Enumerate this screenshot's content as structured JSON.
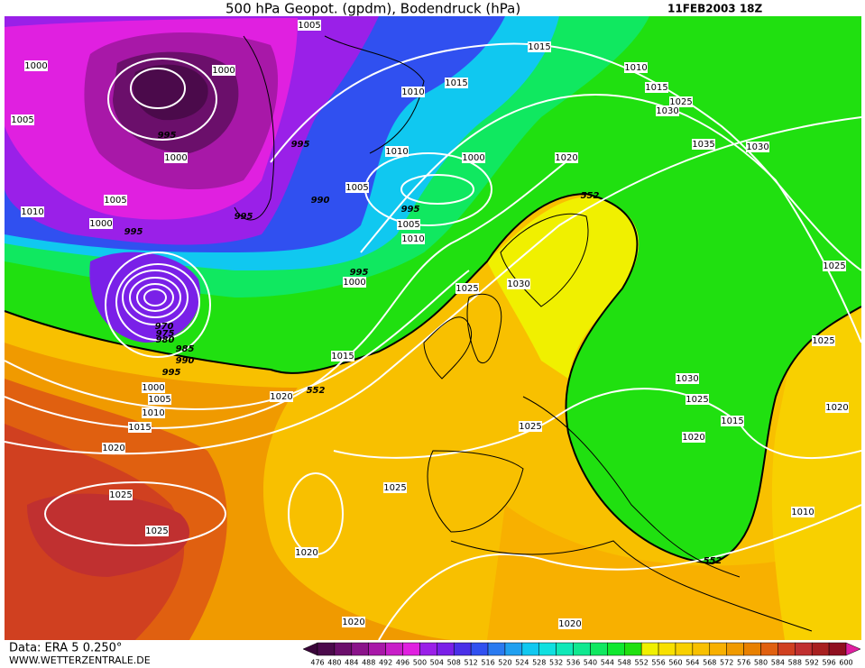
{
  "header": {
    "title": "500 hPa Geopot. (gpdm), Bodendruck (hPa)",
    "date": "11FEB2003 18Z"
  },
  "footer": {
    "source": "Data: ERA 5 0.250°",
    "website": "WWW.WETTERZENTRALE.DE"
  },
  "colorbar": {
    "labels": [
      476,
      480,
      484,
      488,
      492,
      496,
      500,
      504,
      508,
      512,
      516,
      520,
      524,
      528,
      532,
      536,
      540,
      544,
      548,
      552,
      556,
      560,
      564,
      568,
      572,
      576,
      580,
      584,
      588,
      592,
      596,
      600
    ],
    "colors": [
      "#4b0a4b",
      "#6b0f6b",
      "#8a148a",
      "#a818a8",
      "#c81ec8",
      "#e020e0",
      "#9a20e8",
      "#7a20e8",
      "#4a30e8",
      "#3050f0",
      "#2a7af0",
      "#20a0f0",
      "#10c8f0",
      "#10e0e0",
      "#10e8b8",
      "#10e890",
      "#10e860",
      "#10e830",
      "#20e010",
      "#f0f000",
      "#f8e000",
      "#f8d000",
      "#f8c000",
      "#f8b000",
      "#f09a00",
      "#e88000",
      "#e06010",
      "#d04020",
      "#c03030",
      "#a82020",
      "#901020"
    ],
    "low_arrow_color": "#3a063a",
    "high_arrow_color": "#e020a0"
  },
  "isobar_labels": [
    "1005",
    "1015",
    "1000",
    "1000",
    "1010",
    "1010",
    "1015",
    "1015",
    "1005",
    "1025",
    "1030",
    "995",
    "995",
    "1010",
    "1035",
    "1030",
    "1000",
    "1000",
    "1020",
    "552",
    "1005",
    "990",
    "1005",
    "1010",
    "995",
    "995",
    "1005",
    "1000",
    "995",
    "1010",
    "995",
    "1000",
    "1025",
    "1025",
    "1030",
    "970",
    "975",
    "980",
    "985",
    "990",
    "995",
    "1000",
    "1005",
    "1010",
    "1015",
    "1015",
    "552",
    "1025",
    "1030",
    "1025",
    "1020",
    "1015",
    "1020",
    "1025",
    "1020",
    "1020",
    "1025",
    "1025",
    "1025",
    "1010",
    "552",
    "1020",
    "1020",
    "1020"
  ]
}
